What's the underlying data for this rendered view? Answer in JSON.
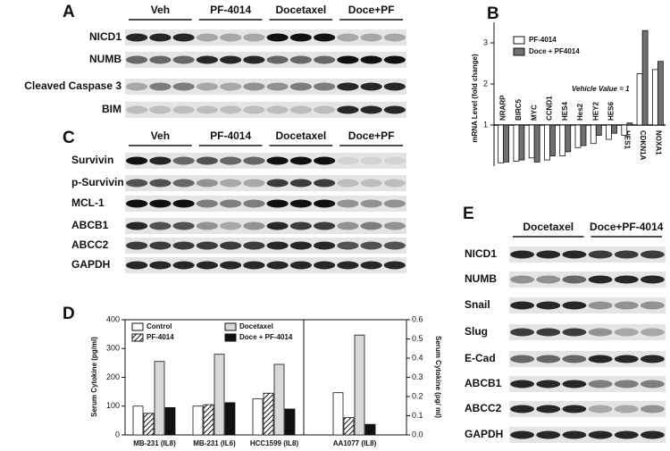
{
  "panel_a": {
    "label": "A",
    "groups": [
      "Veh",
      "PF-4014",
      "Docetaxel",
      "Doce+PF"
    ],
    "rows": [
      "NICD1",
      "NUMB",
      "Cleaved Caspase 3",
      "BIM"
    ]
  },
  "panel_b": {
    "label": "B",
    "type": "bar",
    "ylabel": "mRNA Level (fold change)",
    "annotation": "Vehicle Value = 1",
    "categories": [
      "NRARP",
      "BIRC5",
      "MYC",
      "CCND1",
      "HES4",
      "Hes2",
      "HEY2",
      "HES6",
      "HES1",
      "CDKN1A",
      "NOXA1"
    ],
    "series": [
      {
        "name": "PF-4014",
        "color": "#ffffff",
        "values": [
          0.08,
          0.12,
          0.2,
          0.15,
          0.25,
          0.45,
          0.55,
          0.65,
          0.75,
          2.25,
          2.35
        ]
      },
      {
        "name": "Doce + PF4014",
        "color": "#707070",
        "values": [
          0.1,
          0.15,
          0.1,
          0.25,
          0.35,
          0.5,
          0.75,
          0.8,
          1.05,
          3.3,
          2.55
        ]
      }
    ],
    "baseline": 1,
    "ylim": [
      0,
      3.5
    ],
    "yticks": [
      1,
      2,
      3
    ]
  },
  "panel_c": {
    "label": "C",
    "groups": [
      "Veh",
      "PF-4014",
      "Docetaxel",
      "Doce+PF"
    ],
    "rows": [
      "Survivin",
      "p-Survivin",
      "MCL-1",
      "ABCB1",
      "ABCC2",
      "GAPDH"
    ]
  },
  "panel_d": {
    "label": "D",
    "type": "bar",
    "ylabel": "Serum Cytokine (pg/ml)",
    "y2label": "Serum Cytokine (pg/ ml)",
    "categories": [
      "MB-231 (IL8)",
      "MB-231 (IL6)",
      "HCC1599 (IL8)",
      "AA1077 (IL8)"
    ],
    "category_axis": [
      "y",
      "y",
      "y",
      "y2"
    ],
    "series": [
      {
        "name": "Control",
        "color": "#ffffff",
        "values": [
          100,
          100,
          125,
          0.22
        ]
      },
      {
        "name": "PF-4014",
        "color": "hatch",
        "values": [
          75,
          105,
          145,
          0.09
        ]
      },
      {
        "name": "Docetaxel",
        "color": "#d9d9d9",
        "values": [
          255,
          280,
          245,
          0.52
        ]
      },
      {
        "name": "Doce + PF-4014",
        "color": "#111111",
        "values": [
          95,
          112,
          90,
          0.055
        ]
      }
    ],
    "ylim": [
      0,
      400
    ],
    "yticks": [
      0,
      100,
      200,
      300,
      400
    ],
    "y2lim": [
      0,
      0.6
    ],
    "y2ticks": [
      {
        "value": 0,
        "label": "0.0"
      },
      0.1,
      0.2,
      0.3,
      0.4,
      0.5,
      0.6
    ]
  },
  "panel_e": {
    "label": "E",
    "groups": [
      "Docetaxel",
      "Doce+PF-4014"
    ],
    "rows": [
      "NICD1",
      "NUMB",
      "Snail",
      "Slug",
      "E-Cad",
      "ABCB1",
      "ABCC2",
      "GAPDH"
    ]
  }
}
